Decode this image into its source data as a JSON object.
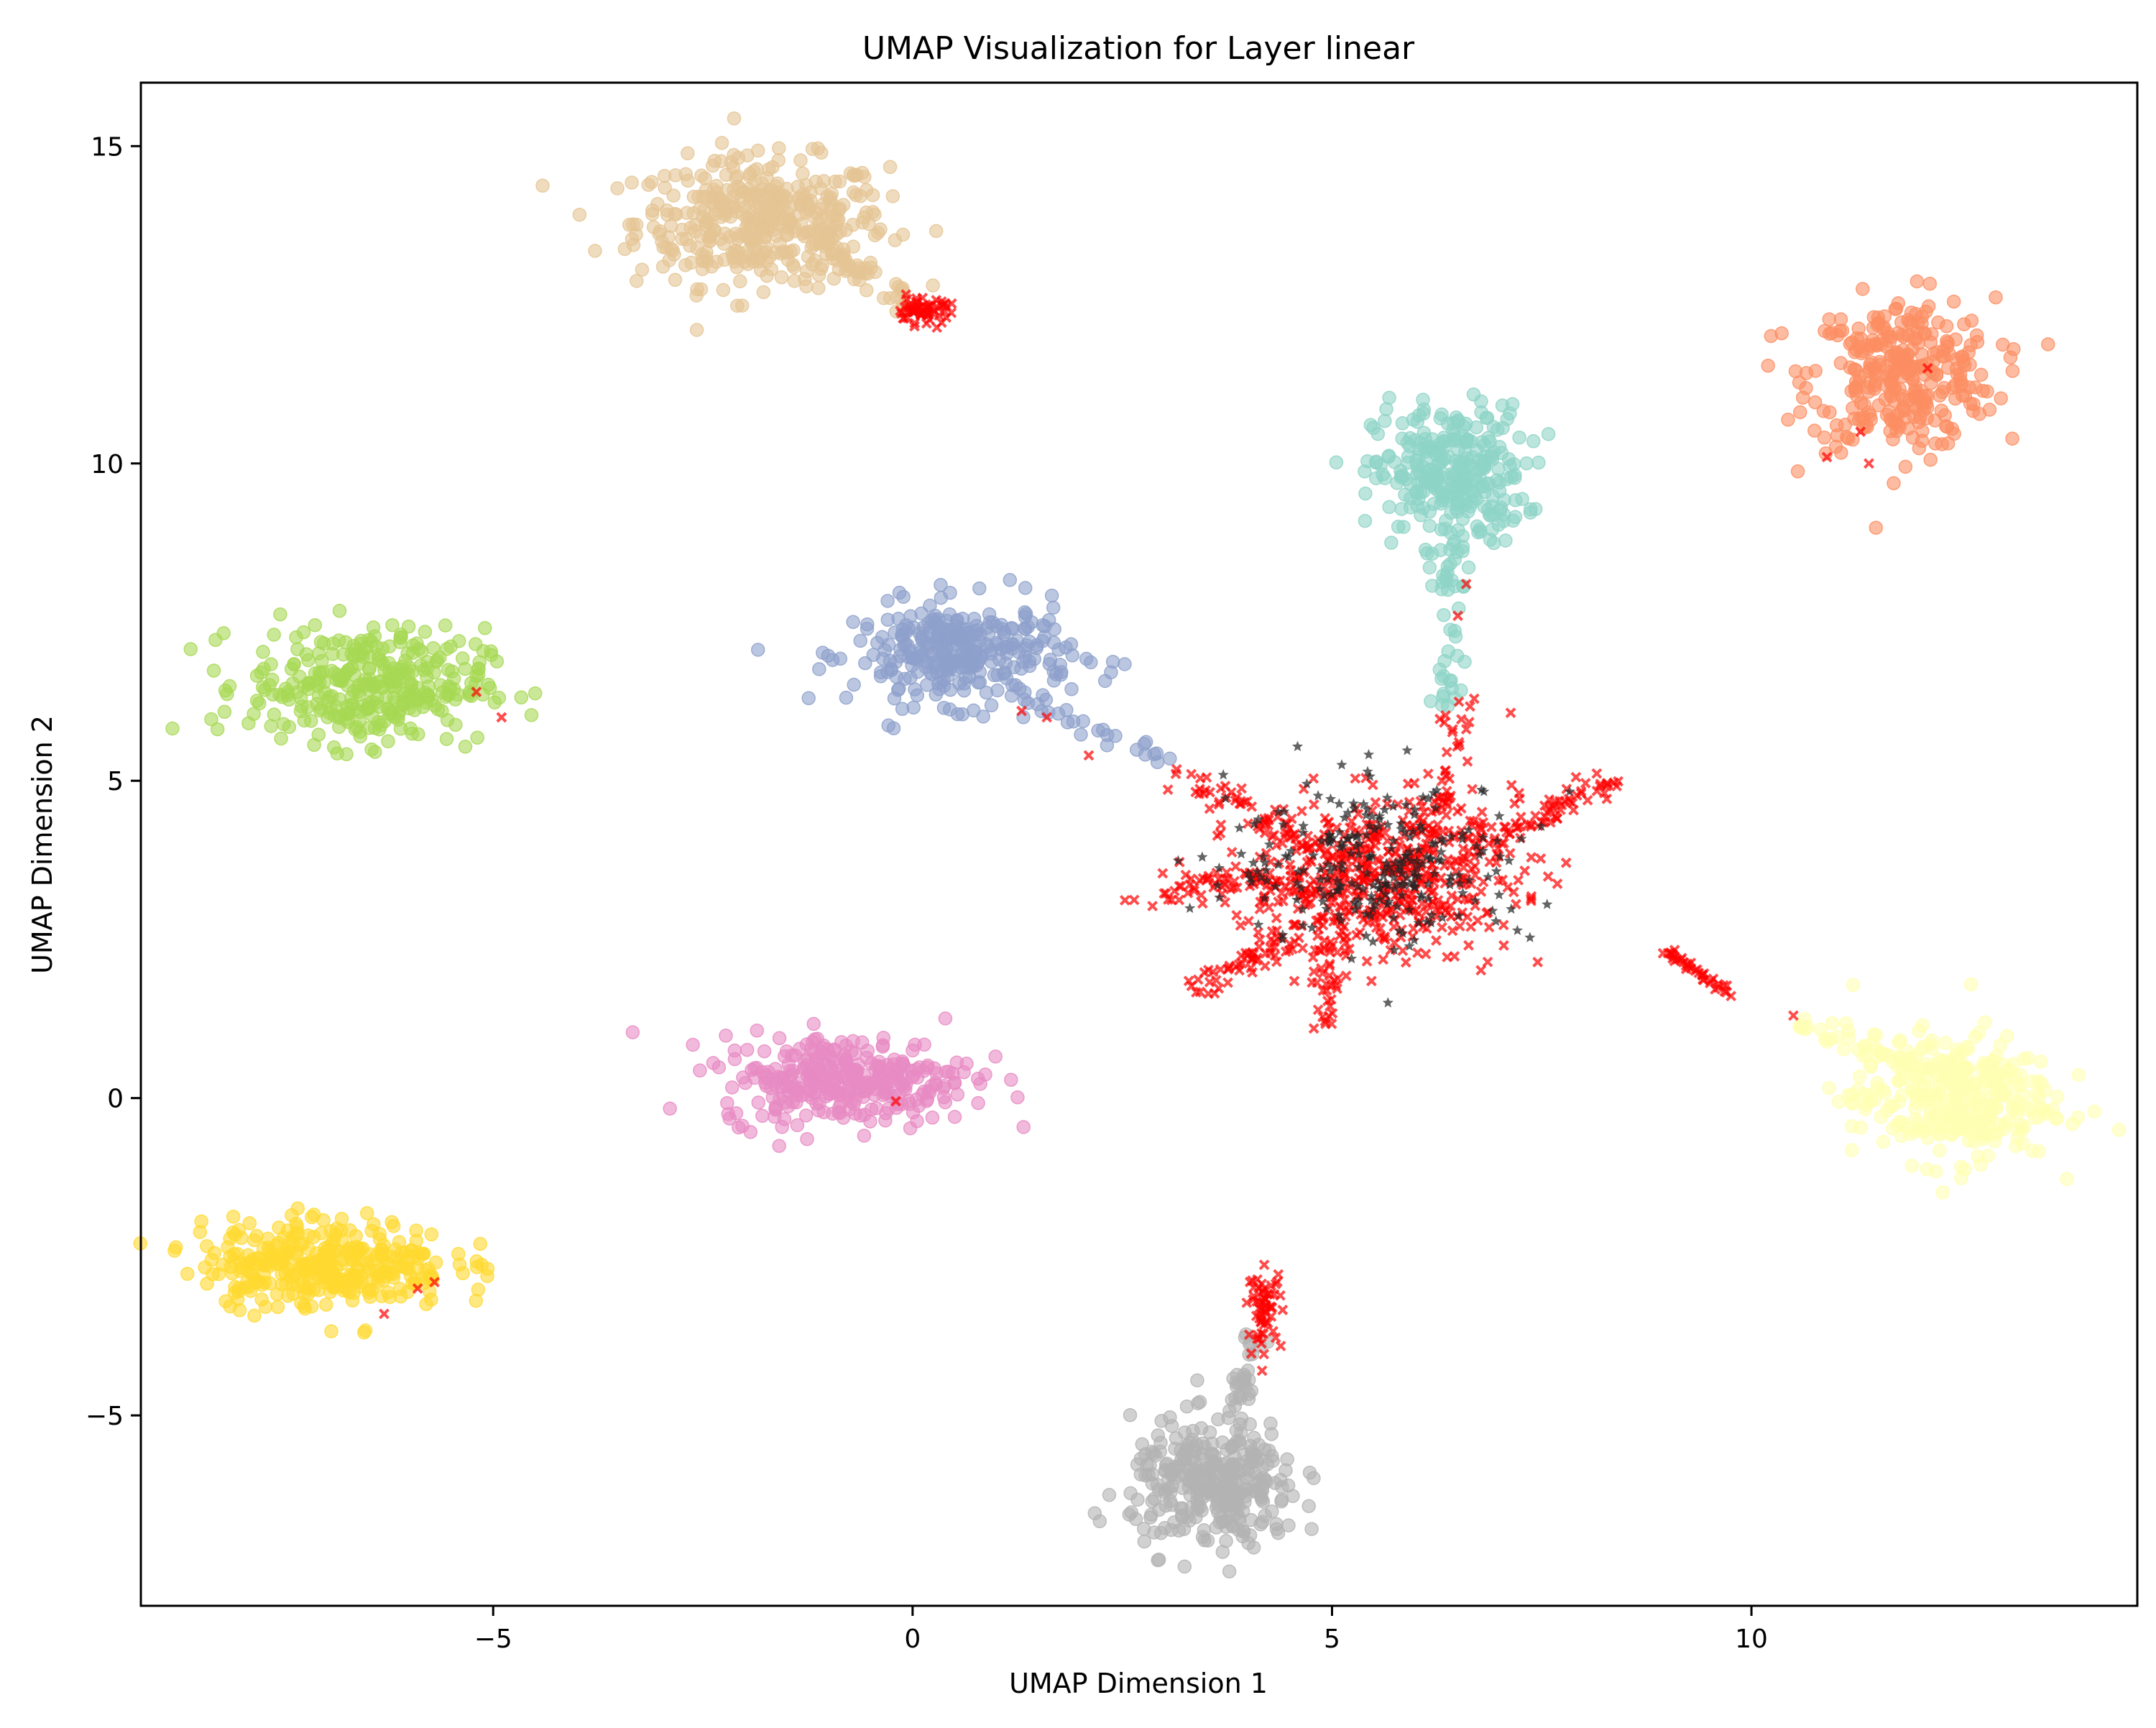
{
  "chart_data": {
    "type": "scatter",
    "title": "UMAP Visualization for Layer linear",
    "xlabel": "UMAP Dimension 1",
    "ylabel": "UMAP Dimension 2",
    "xlim": [
      -9.2,
      14.6
    ],
    "ylim": [
      -8.0,
      16.0
    ],
    "xticks": [
      -5,
      0,
      5,
      10
    ],
    "yticks": [
      -5,
      0,
      5,
      10,
      15
    ],
    "grid": false,
    "legend": "none",
    "clusters": [
      {
        "name": "tan",
        "color": "#e5c494",
        "center": [
          -1.8,
          13.8
        ],
        "spread": [
          0.75,
          0.5
        ],
        "count": 420
      },
      {
        "name": "coral",
        "color": "#fc8d62",
        "center": [
          11.8,
          11.4
        ],
        "spread": [
          0.55,
          0.6
        ],
        "count": 320
      },
      {
        "name": "teal",
        "color": "#8dd3c7",
        "center": [
          6.4,
          9.8
        ],
        "spread": [
          0.45,
          0.55
        ],
        "count": 300
      },
      {
        "name": "periwinkle",
        "color": "#8da0cb",
        "center": [
          0.6,
          7.0
        ],
        "spread": [
          0.65,
          0.4
        ],
        "count": 320
      },
      {
        "name": "lime",
        "color": "#a6d854",
        "center": [
          -6.5,
          6.5
        ],
        "spread": [
          0.7,
          0.45
        ],
        "count": 340
      },
      {
        "name": "pink",
        "color": "#e78ac3",
        "center": [
          -0.8,
          0.3
        ],
        "spread": [
          0.75,
          0.35
        ],
        "count": 330
      },
      {
        "name": "lightyellow",
        "color": "#ffffb3",
        "center": [
          12.4,
          0.0
        ],
        "spread": [
          0.6,
          0.5
        ],
        "count": 320
      },
      {
        "name": "gold",
        "color": "#ffd92f",
        "center": [
          -7.0,
          -2.6
        ],
        "spread": [
          0.75,
          0.35
        ],
        "count": 340
      },
      {
        "name": "gray",
        "color": "#b3b3b3",
        "center": [
          3.6,
          -6.1
        ],
        "spread": [
          0.5,
          0.5
        ],
        "count": 320
      }
    ],
    "tails": [
      {
        "color": "#e5c494",
        "from": [
          -1.0,
          13.3
        ],
        "to": [
          0.0,
          12.5
        ],
        "count": 40
      },
      {
        "color": "#8dd3c7",
        "from": [
          6.4,
          8.8
        ],
        "to": [
          6.4,
          6.2
        ],
        "count": 40
      },
      {
        "color": "#8da0cb",
        "from": [
          1.3,
          6.3
        ],
        "to": [
          3.0,
          5.3
        ],
        "count": 25
      },
      {
        "color": "#ffffb3",
        "from": [
          10.5,
          1.2
        ],
        "to": [
          12.0,
          0.5
        ],
        "count": 35
      },
      {
        "color": "#b3b3b3",
        "from": [
          4.1,
          -3.8
        ],
        "to": [
          3.8,
          -5.0
        ],
        "count": 30
      }
    ],
    "outlier_series": {
      "color": "#ff0000",
      "marker": "x",
      "core": {
        "center": [
          5.6,
          3.5
        ],
        "spread": [
          0.8,
          0.6
        ],
        "count": 520
      },
      "arms": [
        {
          "from": [
            5.0,
            3.8
          ],
          "to": [
            3.1,
            5.2
          ],
          "count": 60
        },
        {
          "from": [
            6.6,
            4.0
          ],
          "to": [
            8.4,
            5.0
          ],
          "count": 70
        },
        {
          "from": [
            4.6,
            3.4
          ],
          "to": [
            2.7,
            3.3
          ],
          "count": 60
        },
        {
          "from": [
            4.6,
            2.6
          ],
          "to": [
            3.3,
            1.7
          ],
          "count": 60
        },
        {
          "from": [
            5.0,
            2.6
          ],
          "to": [
            4.9,
            1.1
          ],
          "count": 40
        },
        {
          "from": [
            6.3,
            4.3
          ],
          "to": [
            6.4,
            6.2
          ],
          "count": 40
        }
      ],
      "clusters": [
        {
          "center": [
            0.1,
            12.4
          ],
          "spread": [
            0.18,
            0.1
          ],
          "count": 60
        },
        {
          "center": [
            4.2,
            -3.3
          ],
          "spread": [
            0.1,
            0.3
          ],
          "count": 60
        }
      ],
      "lines": [
        {
          "from": [
            9.0,
            2.3
          ],
          "to": [
            9.8,
            1.6
          ],
          "count": 40
        }
      ],
      "singles": [
        [
          -5.2,
          6.4
        ],
        [
          -4.9,
          6.0
        ],
        [
          1.3,
          6.1
        ],
        [
          1.6,
          6.0
        ],
        [
          2.1,
          5.4
        ],
        [
          -5.7,
          -2.9
        ],
        [
          -5.9,
          -3.0
        ],
        [
          -6.3,
          -3.4
        ],
        [
          -0.2,
          -0.05
        ],
        [
          10.5,
          1.3
        ],
        [
          11.3,
          10.5
        ],
        [
          11.4,
          10.0
        ],
        [
          12.1,
          11.5
        ],
        [
          10.9,
          10.1
        ],
        [
          6.5,
          7.6
        ],
        [
          6.6,
          8.1
        ]
      ]
    },
    "star_series": {
      "color": "#222222",
      "marker": "star",
      "core": {
        "center": [
          5.6,
          3.7
        ],
        "spread": [
          0.9,
          0.65
        ],
        "count": 260
      }
    }
  }
}
